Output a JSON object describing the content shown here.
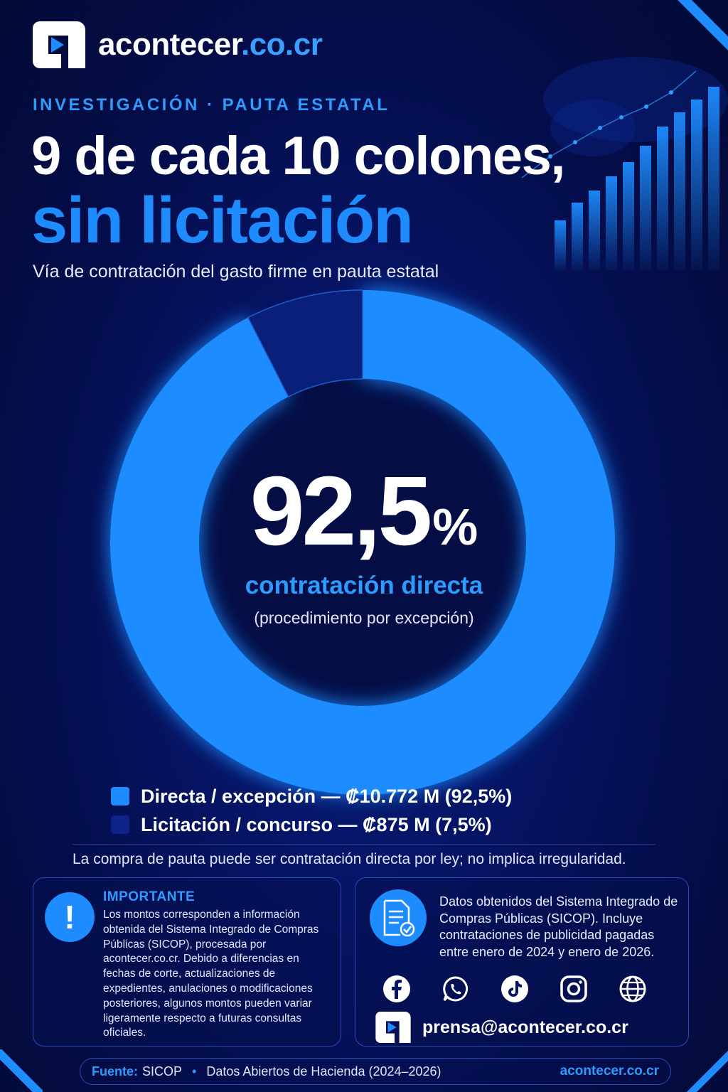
{
  "brand": {
    "name": "acontecer",
    "domain": ".co.cr"
  },
  "kicker": "INVESTIGACIÓN · PAUTA ESTATAL",
  "headline": {
    "line1": "9 de cada 10 colones,",
    "line2": "sin licitación"
  },
  "subtitle": "Vía de contratación del gasto firme en pauta estatal",
  "chart_data": {
    "type": "pie",
    "variant": "donut",
    "center": {
      "value": "92,5",
      "unit": "%",
      "label": "contratación directa",
      "sublabel": "(procedimiento por excepción)"
    },
    "slices": [
      {
        "name": "Directa / excepción",
        "amount_millions_crc": 10772,
        "percent": 92.5,
        "color": "#1e8cff",
        "legend": "Directa / excepción — ₡10.772 M (92,5%)"
      },
      {
        "name": "Licitación / concurso",
        "amount_millions_crc": 875,
        "percent": 7.5,
        "color": "#0a1f7a",
        "legend": "Licitación / concurso — ₡875 M (7,5%)"
      }
    ],
    "legend_position": "bottom"
  },
  "disclaimer": "La compra de pauta puede ser contratación directa por ley; no implica irregularidad.",
  "important": {
    "title": "IMPORTANTE",
    "body": "Los montos corresponden a información obtenida del Sistema Integrado de Compras Públicas (SICOP), procesada por acontecer.co.cr. Debido a diferencias en fechas de corte, actualizaciones de expedientes, anulaciones o modificaciones posteriores, algunos montos pueden variar ligeramente respecto a futuras consultas oficiales."
  },
  "data_note": "Datos obtenidos del Sistema Integrado de Compras Públicas (SICOP). Incluye contrataciones de publicidad pagadas entre enero de 2024 y enero de 2026.",
  "socials": [
    "facebook-icon",
    "whatsapp-icon",
    "tiktok-icon",
    "instagram-icon",
    "globe-icon"
  ],
  "contact_email": "prensa@acontecer.co.cr",
  "footer": {
    "source_label": "Fuente:",
    "source": "SICOP",
    "dataset": "Datos Abiertos de Hacienda (2024–2026)",
    "site": "acontecer.co.cr"
  },
  "colors": {
    "accent": "#1e8cff",
    "background": "#061465",
    "dark_slice": "#0a1f7a"
  }
}
